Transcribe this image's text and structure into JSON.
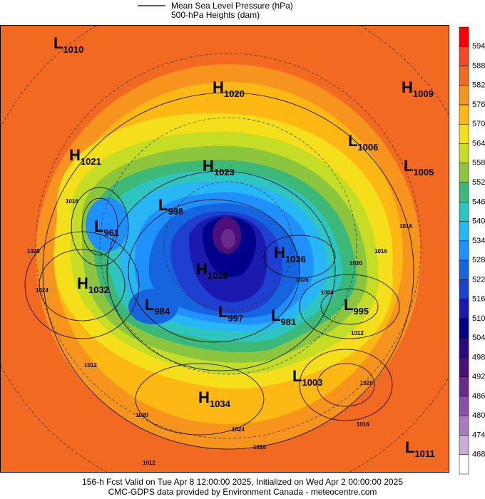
{
  "header": {
    "line1": "Mean Sea Level Pressure (hPa)",
    "line2": "500-hPa Heights (dam)"
  },
  "colorbar": {
    "labels": [
      594,
      588,
      582,
      576,
      570,
      564,
      558,
      552,
      546,
      540,
      534,
      528,
      522,
      516,
      510,
      504,
      498,
      492,
      486,
      480,
      474,
      468
    ],
    "colors": [
      "#ff0000",
      "#f34a24",
      "#f26a22",
      "#f7941d",
      "#fdb813",
      "#f5df1b",
      "#c5dd25",
      "#8cc63f",
      "#3cb878",
      "#2ec4c0",
      "#29b6f6",
      "#1e90ff",
      "#1565e0",
      "#1e3fd0",
      "#1a1ab0",
      "#00008b",
      "#2a0a80",
      "#4b0f7a",
      "#6a2a8c",
      "#8a4fa8",
      "#a77dc0",
      "#c9aed9",
      "#ffffff"
    ]
  },
  "centers": [
    {
      "kind": "L",
      "value": 1010
    },
    {
      "kind": "H",
      "value": 1020
    },
    {
      "kind": "H",
      "value": 1009
    },
    {
      "kind": "L",
      "value": 1006
    },
    {
      "kind": "H",
      "value": 1021
    },
    {
      "kind": "H",
      "value": 1023
    },
    {
      "kind": "L",
      "value": 1005
    },
    {
      "kind": "L",
      "value": 998
    },
    {
      "kind": "L",
      "value": 961
    },
    {
      "kind": "H",
      "value": 1036
    },
    {
      "kind": "H",
      "value": 1028
    },
    {
      "kind": "H",
      "value": 1032
    },
    {
      "kind": "L",
      "value": 984
    },
    {
      "kind": "L",
      "value": 997
    },
    {
      "kind": "L",
      "value": 981
    },
    {
      "kind": "L",
      "value": 995
    },
    {
      "kind": "L",
      "value": 1003
    },
    {
      "kind": "H",
      "value": 1034
    },
    {
      "kind": "L",
      "value": 1011
    }
  ],
  "contour_labels": [
    1016,
    1020,
    1024,
    1036,
    1016,
    1020,
    1004,
    1012,
    1016,
    1020,
    1020,
    1016,
    1012,
    1024,
    1016,
    1012
  ],
  "footer": {
    "line1": "156-h Fcst Valid on Tue Apr  8 12:00:00 2025, Initialized on Wed Apr  2 00:00:00 2025",
    "line2": "CMC-GDPS data provided by Environment Canada - meteocentre.com"
  }
}
